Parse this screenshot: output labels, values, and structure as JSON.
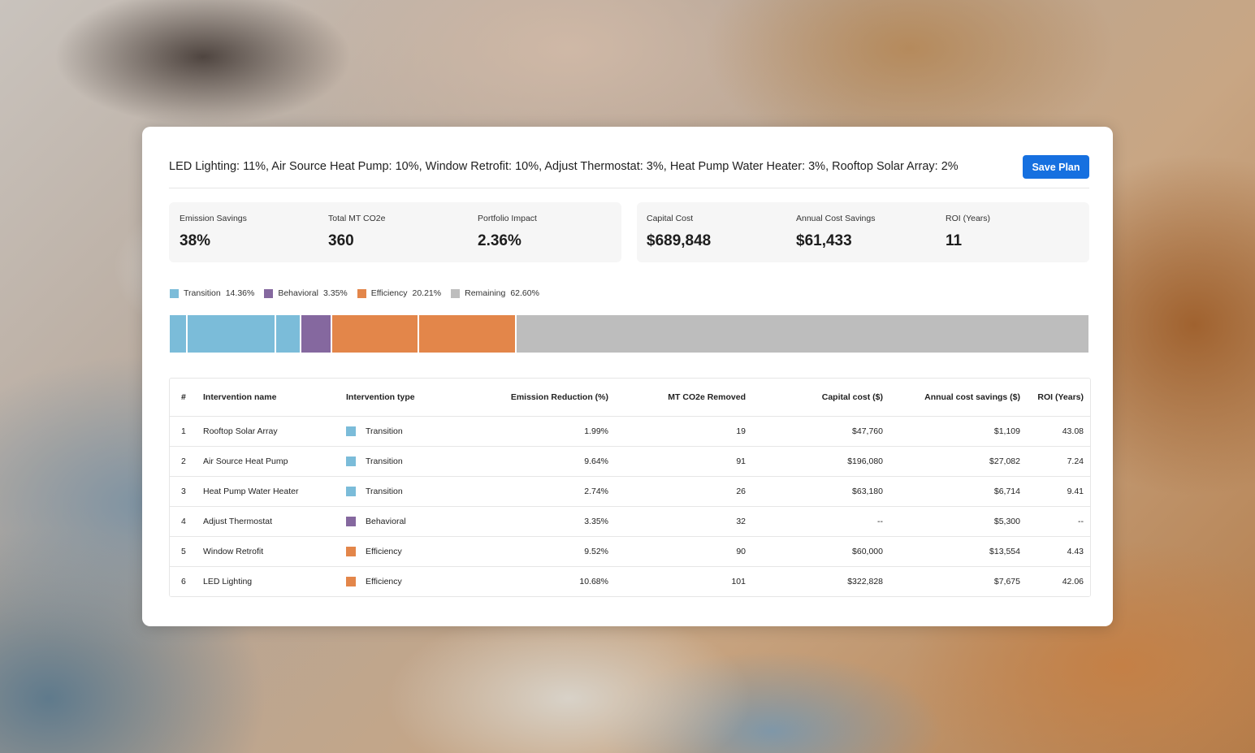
{
  "summary": "LED Lighting: 11%, Air Source Heat Pump: 10%, Window Retrofit: 10%, Adjust Thermostat: 3%, Heat Pump Water Heater: 3%, Rooftop Solar Array: 2%",
  "save_button_label": "Save Plan",
  "stats_left": [
    {
      "label": "Emission Savings",
      "value": "38%"
    },
    {
      "label": "Total MT CO2e",
      "value": "360"
    },
    {
      "label": "Portfolio Impact",
      "value": "2.36%"
    }
  ],
  "stats_right": [
    {
      "label": "Capital Cost",
      "value": "$689,848"
    },
    {
      "label": "Annual Cost Savings",
      "value": "$61,433"
    },
    {
      "label": "ROI (Years)",
      "value": "11"
    }
  ],
  "colors": {
    "transition": "#7bbcd9",
    "behavioral": "#85689f",
    "efficiency": "#e3864a",
    "remaining": "#bdbdbd",
    "accent": "#1670e0"
  },
  "legend": [
    {
      "label": "Transition",
      "pct": "14.36%",
      "color": "#7bbcd9"
    },
    {
      "label": "Behavioral",
      "pct": "3.35%",
      "color": "#85689f"
    },
    {
      "label": "Efficiency",
      "pct": "20.21%",
      "color": "#e3864a"
    },
    {
      "label": "Remaining",
      "pct": "62.60%",
      "color": "#bdbdbd"
    }
  ],
  "breakdown_bar": [
    {
      "name": "Rooftop Solar Array",
      "type": "Transition",
      "pct": 1.99
    },
    {
      "name": "Air Source Heat Pump",
      "type": "Transition",
      "pct": 9.64
    },
    {
      "name": "Heat Pump Water Heater",
      "type": "Transition",
      "pct": 2.74
    },
    {
      "name": "Adjust Thermostat",
      "type": "Behavioral",
      "pct": 3.35
    },
    {
      "name": "Window Retrofit",
      "type": "Efficiency",
      "pct": 9.52
    },
    {
      "name": "LED Lighting",
      "type": "Efficiency",
      "pct": 10.68
    },
    {
      "name": "Remaining",
      "type": "Remaining",
      "pct": 62.6
    }
  ],
  "table": {
    "headers": [
      "#",
      "Intervention name",
      "Intervention type",
      "Emission Reduction (%)",
      "MT CO2e Removed",
      "Capital cost ($)",
      "Annual cost savings ($)",
      "ROI (Years)"
    ],
    "rows": [
      [
        "1",
        "Rooftop Solar Array",
        "Transition",
        "1.99%",
        "19",
        "$47,760",
        "$1,109",
        "43.08"
      ],
      [
        "2",
        "Air Source Heat Pump",
        "Transition",
        "9.64%",
        "91",
        "$196,080",
        "$27,082",
        "7.24"
      ],
      [
        "3",
        "Heat Pump Water Heater",
        "Transition",
        "2.74%",
        "26",
        "$63,180",
        "$6,714",
        "9.41"
      ],
      [
        "4",
        "Adjust Thermostat",
        "Behavioral",
        "3.35%",
        "32",
        "--",
        "$5,300",
        "--"
      ],
      [
        "5",
        "Window Retrofit",
        "Efficiency",
        "9.52%",
        "90",
        "$60,000",
        "$13,554",
        "4.43"
      ],
      [
        "6",
        "LED Lighting",
        "Efficiency",
        "10.68%",
        "101",
        "$322,828",
        "$7,675",
        "42.06"
      ]
    ]
  }
}
